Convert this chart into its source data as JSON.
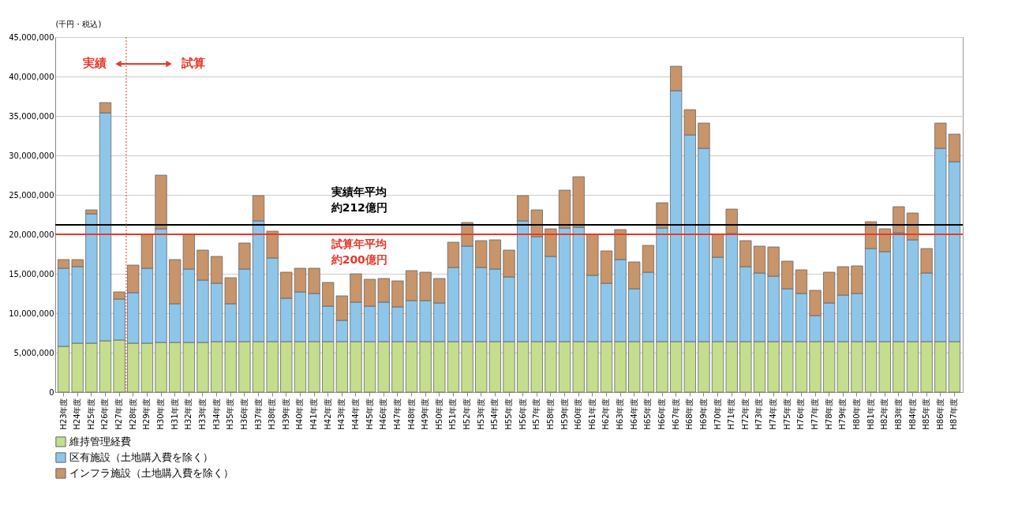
{
  "chart_data": {
    "type": "bar",
    "stacked": true,
    "ylabel": "(千円・税込)",
    "categories": [
      "H23年度",
      "H24年度",
      "H25年度",
      "H26年度",
      "H27年度",
      "H28年度",
      "H29年度",
      "H30年度",
      "H31年度",
      "H32年度",
      "H33年度",
      "H34年度",
      "H35年度",
      "H36年度",
      "H37年度",
      "H38年度",
      "H39年度",
      "H40年度",
      "H41年度",
      "H42年度",
      "H43年度",
      "H44年度",
      "H45年度",
      "H46年度",
      "H47年度",
      "H48年度",
      "H49年度",
      "H50年度",
      "H51年度",
      "H52年度",
      "H53年度",
      "H54年度",
      "H55年度",
      "H56年度",
      "H57年度",
      "H58年度",
      "H59年度",
      "H60年度",
      "H61年度",
      "H62年度",
      "H63年度",
      "H64年度",
      "H65年度",
      "H66年度",
      "H67年度",
      "H68年度",
      "H69年度",
      "H70年度",
      "H71年度",
      "H72年度",
      "H73年度",
      "H74年度",
      "H75年度",
      "H76年度",
      "H77年度",
      "H78年度",
      "H79年度",
      "H80年度",
      "H81年度",
      "H82年度",
      "H83年度",
      "H84年度",
      "H85年度",
      "H86年度",
      "H87年度"
    ],
    "series": [
      {
        "name": "維持管理経費",
        "color": "#c4de8e",
        "values": [
          5800000,
          6200000,
          6200000,
          6500000,
          6600000,
          6200000,
          6200000,
          6300000,
          6300000,
          6300000,
          6300000,
          6400000,
          6400000,
          6400000,
          6400000,
          6400000,
          6400000,
          6400000,
          6400000,
          6400000,
          6400000,
          6400000,
          6400000,
          6400000,
          6400000,
          6400000,
          6400000,
          6400000,
          6400000,
          6400000,
          6400000,
          6400000,
          6400000,
          6400000,
          6400000,
          6400000,
          6400000,
          6400000,
          6400000,
          6400000,
          6400000,
          6400000,
          6400000,
          6400000,
          6400000,
          6400000,
          6400000,
          6400000,
          6400000,
          6400000,
          6400000,
          6400000,
          6400000,
          6400000,
          6400000,
          6400000,
          6400000,
          6400000,
          6400000,
          6400000,
          6400000,
          6400000,
          6400000,
          6400000,
          6400000
        ]
      },
      {
        "name": "区有施設（土地購入費を除く）",
        "color": "#8ec6ea",
        "values": [
          9900000,
          9700000,
          16400000,
          28900000,
          5200000,
          6400000,
          9500000,
          14400000,
          4900000,
          9300000,
          7900000,
          7400000,
          4800000,
          9200000,
          15300000,
          10600000,
          5500000,
          6300000,
          6100000,
          4500000,
          2700000,
          5000000,
          4500000,
          5000000,
          4400000,
          5200000,
          5200000,
          4900000,
          9400000,
          12100000,
          9400000,
          9200000,
          8200000,
          15300000,
          13300000,
          10800000,
          14400000,
          14500000,
          8400000,
          7400000,
          10400000,
          6700000,
          8800000,
          14400000,
          31800000,
          26200000,
          24500000,
          10700000,
          13700000,
          9500000,
          8700000,
          8300000,
          6700000,
          6100000,
          3300000,
          4900000,
          5900000,
          6100000,
          11800000,
          11400000,
          13800000,
          12900000,
          8700000,
          24500000,
          22800000
        ]
      },
      {
        "name": "インフラ施設（土地購入費を除く）",
        "color": "#c8946a",
        "values": [
          1100000,
          900000,
          500000,
          1300000,
          900000,
          3500000,
          4300000,
          6800000,
          5600000,
          4400000,
          3800000,
          3400000,
          3300000,
          3300000,
          3200000,
          3400000,
          3300000,
          3000000,
          3200000,
          3000000,
          3100000,
          3600000,
          3400000,
          3000000,
          3300000,
          3800000,
          3600000,
          3100000,
          3200000,
          3000000,
          3400000,
          3700000,
          3400000,
          3200000,
          3400000,
          3500000,
          4800000,
          6400000,
          5200000,
          4100000,
          3800000,
          3400000,
          3400000,
          3200000,
          3100000,
          3200000,
          3200000,
          2900000,
          3100000,
          3300000,
          3400000,
          3700000,
          3500000,
          3000000,
          3200000,
          3900000,
          3600000,
          3500000,
          3400000,
          2900000,
          3300000,
          3400000,
          3100000,
          3200000,
          3500000
        ]
      }
    ],
    "ylim": [
      0,
      45000000
    ],
    "yticks": [
      0,
      {
        "value": 5000000,
        "label": "5,000,000"
      },
      {
        "value": 10000000,
        "label": "10,000,000"
      },
      {
        "value": 15000000,
        "label": "15,000,000"
      },
      {
        "value": 20000000,
        "label": "20,000,000"
      },
      {
        "value": 25000000,
        "label": "25,000,000"
      },
      {
        "value": 30000000,
        "label": "30,000,000"
      },
      {
        "value": 35000000,
        "label": "35,000,000"
      },
      {
        "value": 40000000,
        "label": "40,000,000"
      },
      {
        "value": 45000000,
        "label": "45,000,000"
      }
    ],
    "grid": "y",
    "legend": "bottom",
    "ref_lines": [
      {
        "axis": "y",
        "value": 21200000,
        "label": [
          "実績年平均",
          "約212億円"
        ],
        "color": "#000000",
        "line_style": "solid"
      },
      {
        "axis": "y",
        "value": 20000000,
        "label": [
          "試算年平均",
          "約200億円"
        ],
        "color": "#e8382a",
        "line_style": "solid"
      },
      {
        "axis": "x",
        "value": "H28年度",
        "color": "#e8382a",
        "line_style": "dotted"
      }
    ],
    "annotations": [
      "実績",
      "試算"
    ]
  }
}
